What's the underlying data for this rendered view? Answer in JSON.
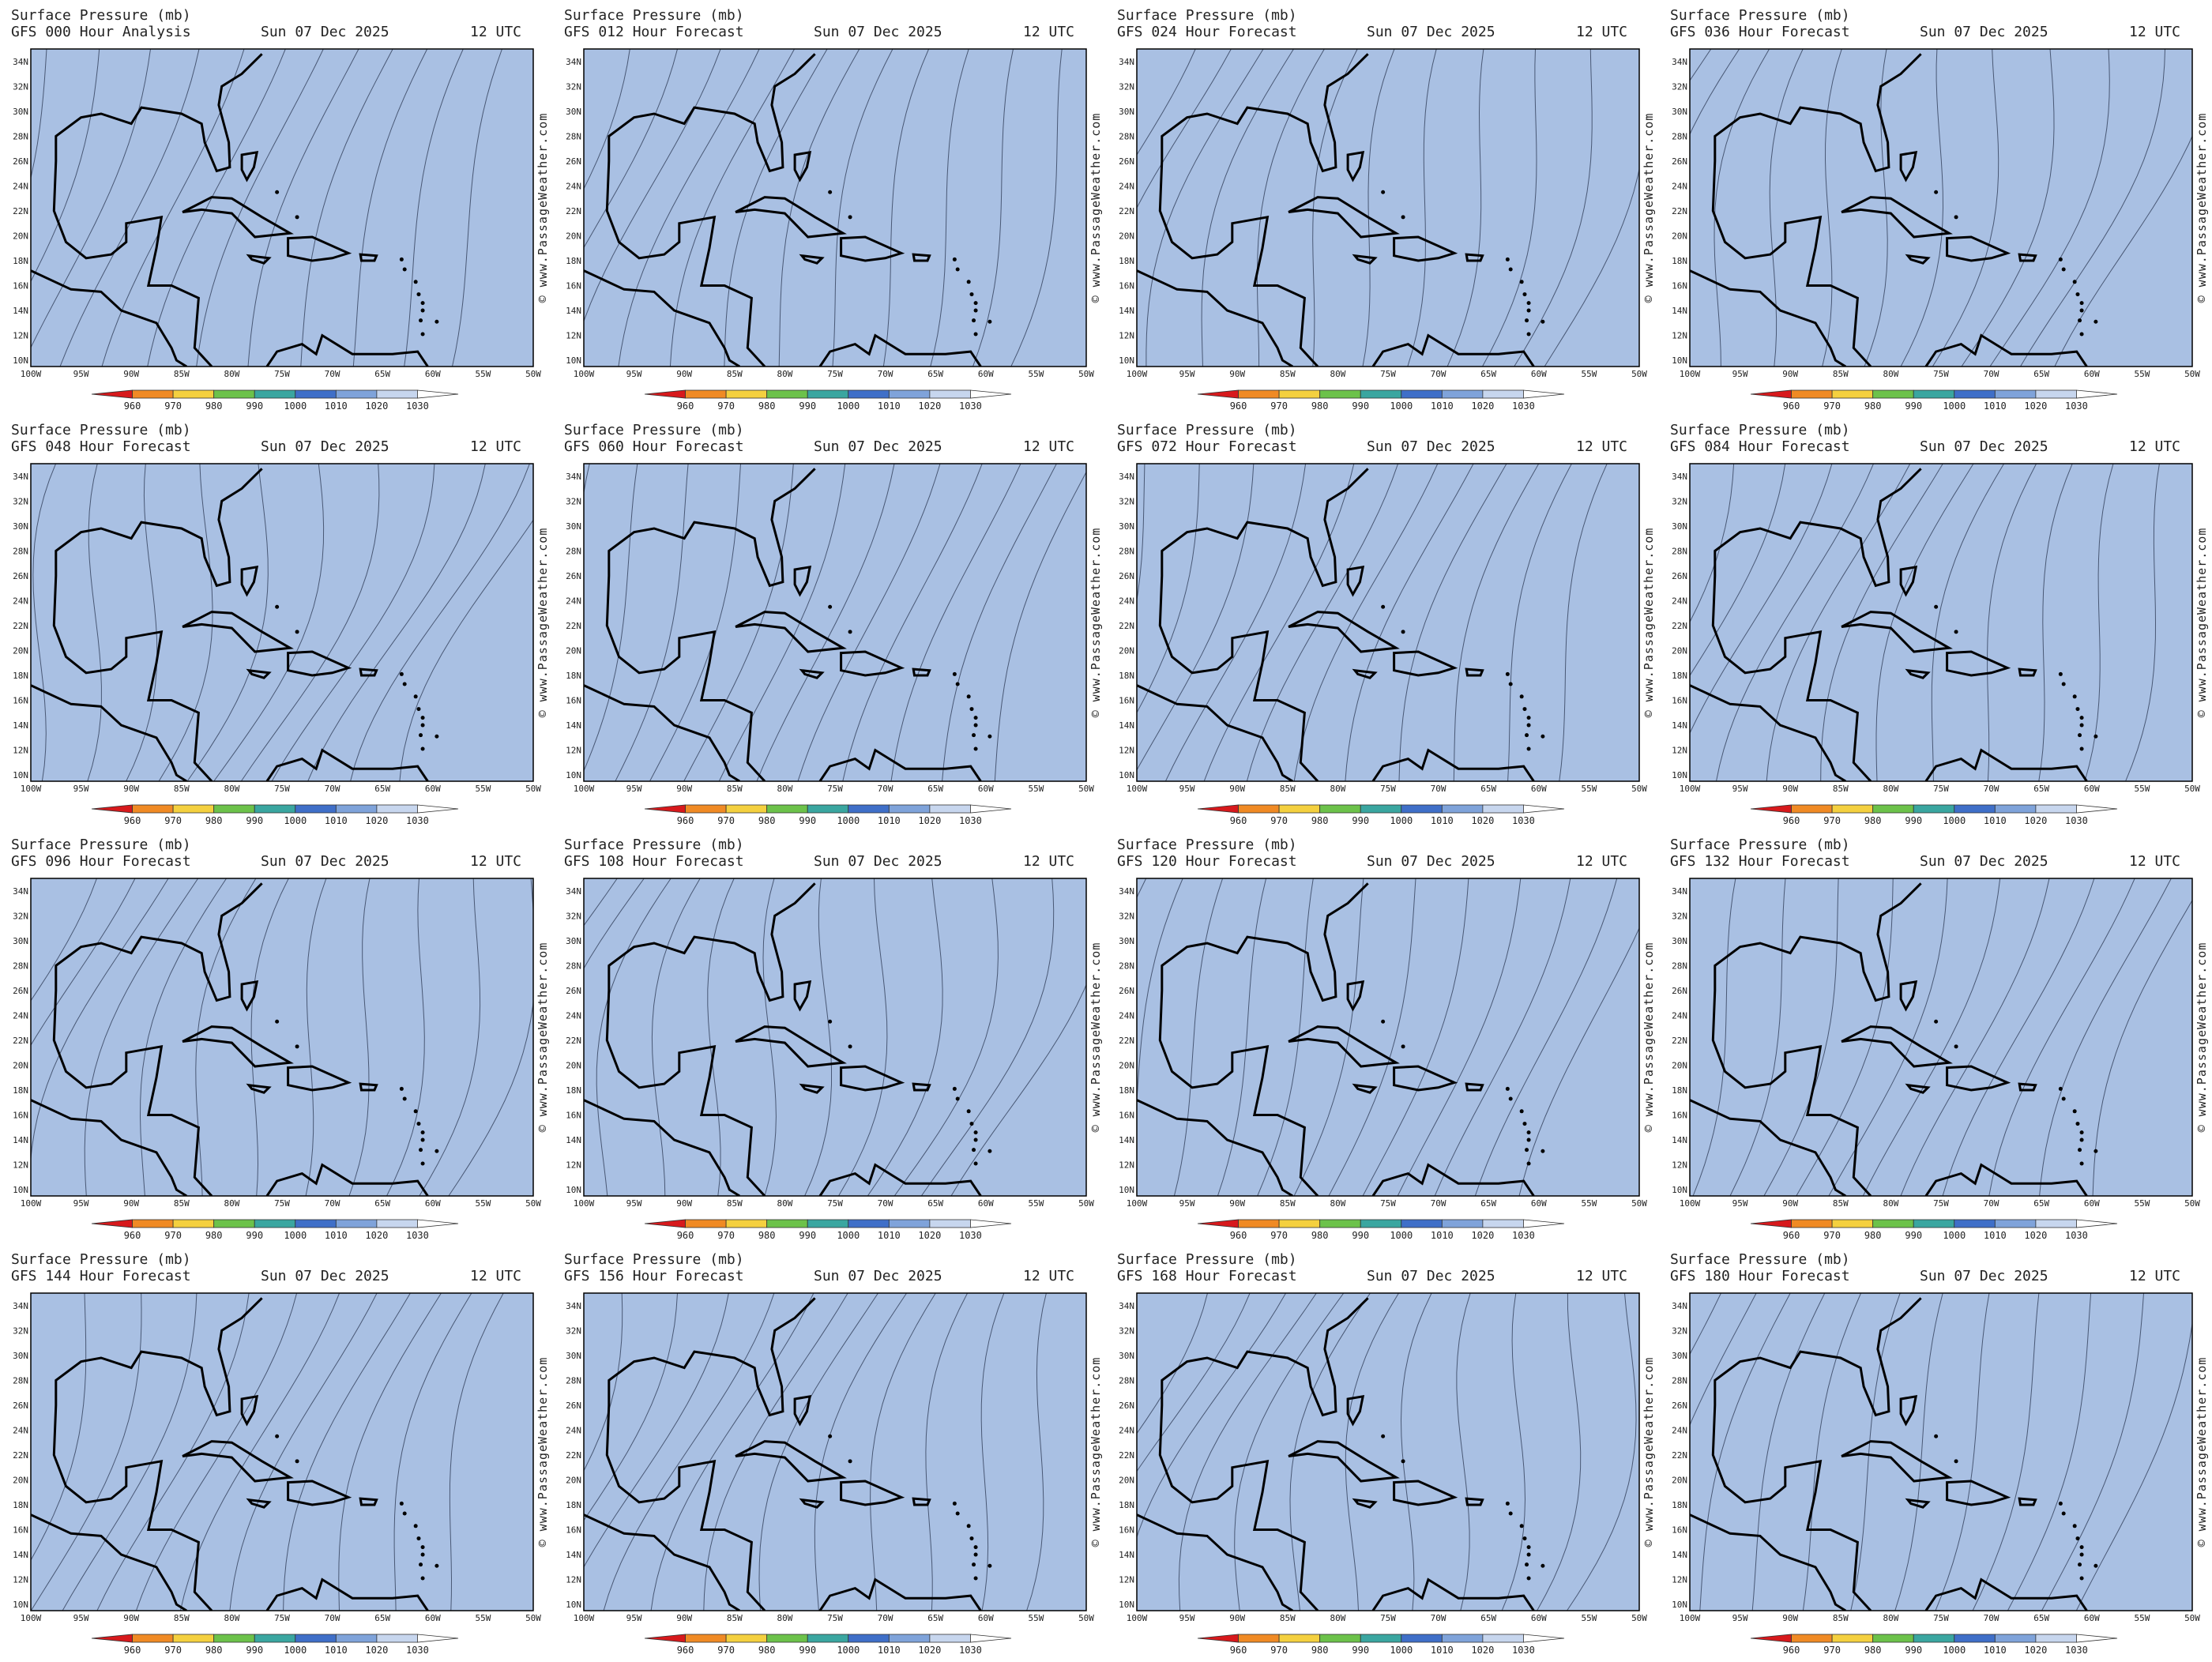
{
  "panels": [
    {
      "title": "Surface Pressure (mb)",
      "subtitle": "GFS 000 Hour Analysis",
      "date": "Sun 07 Dec 2025",
      "time": "12 UTC"
    },
    {
      "title": "Surface Pressure (mb)",
      "subtitle": "GFS 012 Hour Forecast",
      "date": "Sun 07 Dec 2025",
      "time": "12 UTC"
    },
    {
      "title": "Surface Pressure (mb)",
      "subtitle": "GFS 024 Hour Forecast",
      "date": "Sun 07 Dec 2025",
      "time": "12 UTC"
    },
    {
      "title": "Surface Pressure (mb)",
      "subtitle": "GFS 036 Hour Forecast",
      "date": "Sun 07 Dec 2025",
      "time": "12 UTC"
    },
    {
      "title": "Surface Pressure (mb)",
      "subtitle": "GFS 048 Hour Forecast",
      "date": "Sun 07 Dec 2025",
      "time": "12 UTC"
    },
    {
      "title": "Surface Pressure (mb)",
      "subtitle": "GFS 060 Hour Forecast",
      "date": "Sun 07 Dec 2025",
      "time": "12 UTC"
    },
    {
      "title": "Surface Pressure (mb)",
      "subtitle": "GFS 072 Hour Forecast",
      "date": "Sun 07 Dec 2025",
      "time": "12 UTC"
    },
    {
      "title": "Surface Pressure (mb)",
      "subtitle": "GFS 084 Hour Forecast",
      "date": "Sun 07 Dec 2025",
      "time": "12 UTC"
    },
    {
      "title": "Surface Pressure (mb)",
      "subtitle": "GFS 096 Hour Forecast",
      "date": "Sun 07 Dec 2025",
      "time": "12 UTC"
    },
    {
      "title": "Surface Pressure (mb)",
      "subtitle": "GFS 108 Hour Forecast",
      "date": "Sun 07 Dec 2025",
      "time": "12 UTC"
    },
    {
      "title": "Surface Pressure (mb)",
      "subtitle": "GFS 120 Hour Forecast",
      "date": "Sun 07 Dec 2025",
      "time": "12 UTC"
    },
    {
      "title": "Surface Pressure (mb)",
      "subtitle": "GFS 132 Hour Forecast",
      "date": "Sun 07 Dec 2025",
      "time": "12 UTC"
    },
    {
      "title": "Surface Pressure (mb)",
      "subtitle": "GFS 144 Hour Forecast",
      "date": "Sun 07 Dec 2025",
      "time": "12 UTC"
    },
    {
      "title": "Surface Pressure (mb)",
      "subtitle": "GFS 156 Hour Forecast",
      "date": "Sun 07 Dec 2025",
      "time": "12 UTC"
    },
    {
      "title": "Surface Pressure (mb)",
      "subtitle": "GFS 168 Hour Forecast",
      "date": "Sun 07 Dec 2025",
      "time": "12 UTC"
    },
    {
      "title": "Surface Pressure (mb)",
      "subtitle": "GFS 180 Hour Forecast",
      "date": "Sun 07 Dec 2025",
      "time": "12 UTC"
    }
  ],
  "lat_labels": [
    "34N",
    "32N",
    "30N",
    "28N",
    "26N",
    "24N",
    "22N",
    "20N",
    "18N",
    "16N",
    "14N",
    "12N",
    "10N"
  ],
  "lon_labels": [
    "100W",
    "95W",
    "90W",
    "85W",
    "80W",
    "75W",
    "70W",
    "65W",
    "60W",
    "55W",
    "50W"
  ],
  "colorbar": {
    "labels": [
      "960",
      "970",
      "980",
      "990",
      "1000",
      "1010",
      "1020",
      "1030"
    ],
    "colors": [
      "#d7191c",
      "#f08a24",
      "#f4d03f",
      "#6cc24a",
      "#3aa6a0",
      "#3f6fc8",
      "#7fa3da",
      "#c7d6ee",
      "#ffffff"
    ]
  },
  "map_color": "#a9c0e3",
  "credit": "© www.PassageWeather.com"
}
